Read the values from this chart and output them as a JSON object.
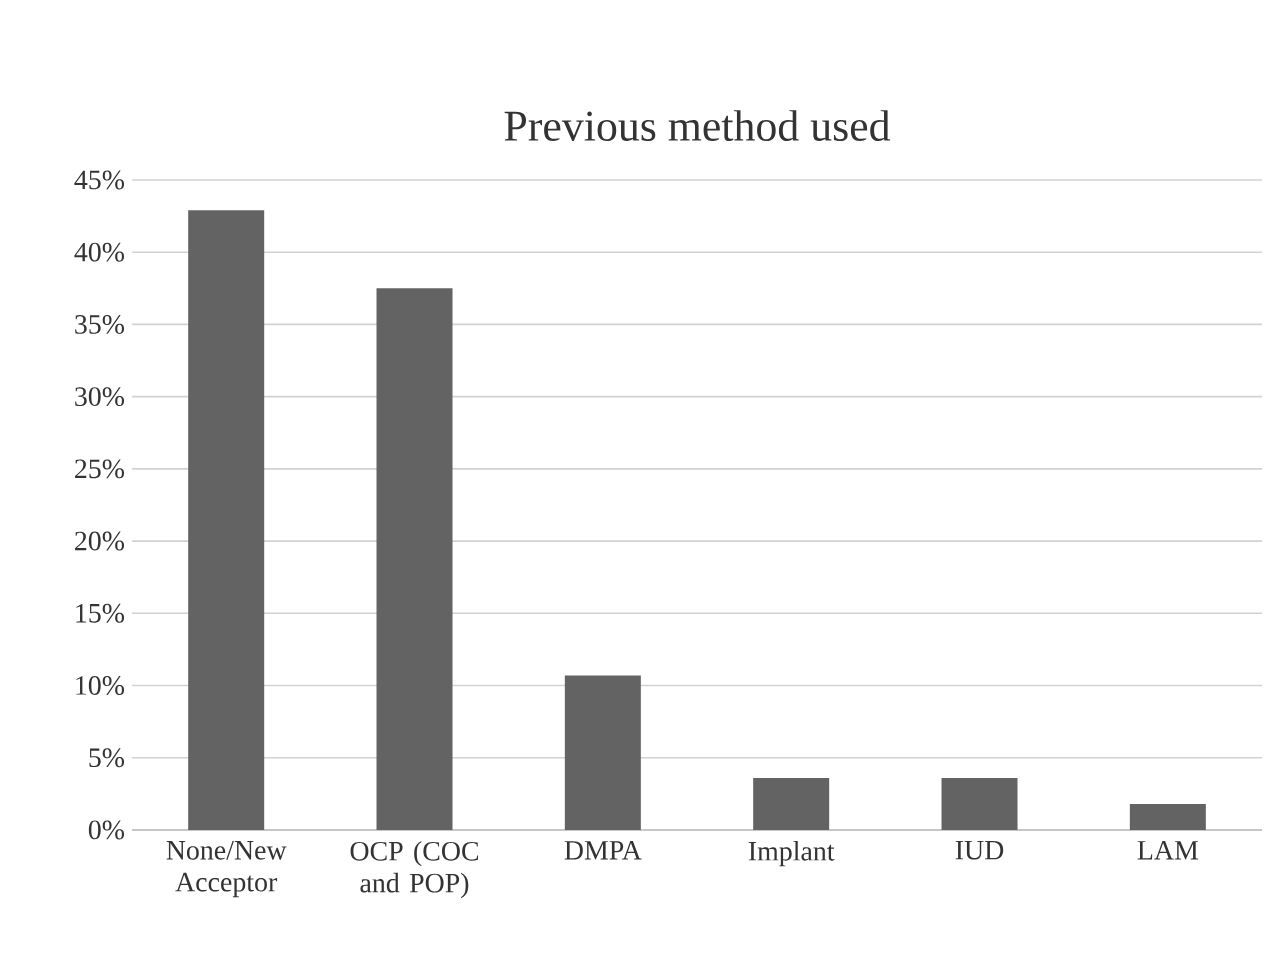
{
  "chart_data": {
    "type": "bar",
    "title": "Previous method used",
    "categories": [
      "None/New Acceptor",
      "OCP (COC and POP)",
      "DMPA",
      "Implant",
      "IUD",
      "LAM"
    ],
    "values": [
      42.9,
      37.5,
      10.7,
      3.6,
      3.6,
      1.8
    ],
    "color": "#636363",
    "ylim": [
      0,
      45
    ],
    "yticks": [
      {
        "value": 0,
        "label": "0%"
      },
      {
        "value": 5,
        "label": "5%"
      },
      {
        "value": 10,
        "label": "10%"
      },
      {
        "value": 15,
        "label": "15%"
      },
      {
        "value": 20,
        "label": "20%"
      },
      {
        "value": 25,
        "label": "25%"
      },
      {
        "value": 30,
        "label": "30%"
      },
      {
        "value": 35,
        "label": "35%"
      },
      {
        "value": 40,
        "label": "40%"
      },
      {
        "value": 45,
        "label": "45%"
      }
    ],
    "grid": "y"
  }
}
